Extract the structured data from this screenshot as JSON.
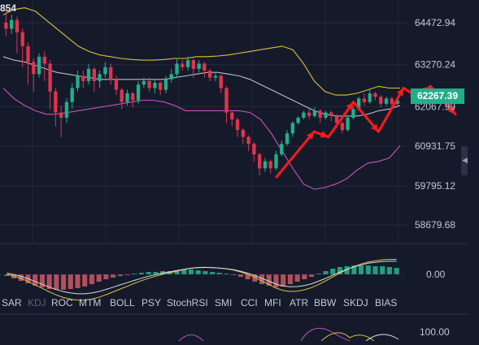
{
  "header": {
    "corner_value": "854"
  },
  "colors": {
    "bg": "#151a2b",
    "up": "#1fb08a",
    "down": "#e0344e",
    "upper_band": "#d8c43a",
    "lower_band": "#c455b8",
    "middle_band": "#b9bccb",
    "annotation": "#ff1a1a",
    "grid": "#242a3e"
  },
  "chart_data": [
    {
      "type": "candlestick",
      "y_ticks": [
        "64472.94",
        "63270.24",
        "62067.99",
        "60931.75",
        "59795.12",
        "58679.68"
      ],
      "last_price": "62267.39",
      "candles": [
        [
          64480,
          64300,
          64860,
          64100
        ],
        [
          64300,
          64550,
          64700,
          64150
        ],
        [
          64550,
          64200,
          64650,
          63600
        ],
        [
          64200,
          63800,
          64300,
          63200
        ],
        [
          63800,
          63350,
          63900,
          62700
        ],
        [
          63350,
          63000,
          63450,
          62500
        ],
        [
          63000,
          63500,
          63600,
          62900
        ],
        [
          63500,
          63300,
          63650,
          62800
        ],
        [
          63300,
          62500,
          63400,
          62000
        ],
        [
          62500,
          61900,
          62600,
          61500
        ],
        [
          61900,
          61750,
          62100,
          61200
        ],
        [
          61750,
          62200,
          62300,
          61600
        ],
        [
          62200,
          62600,
          62750,
          62000
        ],
        [
          62600,
          62950,
          63100,
          62500
        ],
        [
          62950,
          62800,
          63100,
          62600
        ],
        [
          62800,
          63150,
          63300,
          62700
        ],
        [
          63150,
          62800,
          63200,
          62500
        ],
        [
          62800,
          63000,
          63100,
          62600
        ],
        [
          63000,
          63200,
          63350,
          62900
        ],
        [
          63200,
          62850,
          63300,
          62700
        ],
        [
          62850,
          62550,
          62950,
          62400
        ],
        [
          62550,
          62200,
          62600,
          62000
        ],
        [
          62200,
          62450,
          62550,
          62100
        ],
        [
          62450,
          62250,
          62500,
          62050
        ],
        [
          62250,
          62700,
          62800,
          62150
        ],
        [
          62700,
          62800,
          62900,
          62600
        ],
        [
          62800,
          62600,
          62900,
          62500
        ],
        [
          62600,
          62750,
          62850,
          62450
        ],
        [
          62750,
          62550,
          62800,
          62400
        ],
        [
          62550,
          62850,
          62950,
          62450
        ],
        [
          62850,
          63000,
          63150,
          62750
        ],
        [
          63000,
          63300,
          63450,
          62900
        ],
        [
          63300,
          63200,
          63400,
          63100
        ],
        [
          63200,
          63400,
          63500,
          63100
        ],
        [
          63400,
          63150,
          63450,
          62900
        ],
        [
          63150,
          63300,
          63400,
          63050
        ],
        [
          63300,
          63100,
          63350,
          62900
        ],
        [
          63100,
          62900,
          63150,
          62800
        ],
        [
          62900,
          62950,
          63050,
          62800
        ],
        [
          62950,
          62600,
          63000,
          62450
        ],
        [
          62600,
          61900,
          62650,
          61600
        ],
        [
          61900,
          61700,
          61950,
          61500
        ],
        [
          61700,
          61400,
          61750,
          61200
        ],
        [
          61400,
          61200,
          61450,
          61000
        ],
        [
          61200,
          61000,
          61250,
          60800
        ],
        [
          61000,
          60700,
          61050,
          60500
        ],
        [
          60700,
          60300,
          60750,
          60100
        ],
        [
          60300,
          60500,
          60600,
          60200
        ],
        [
          60500,
          60300,
          60550,
          60150
        ],
        [
          60300,
          60700,
          60800,
          60250
        ],
        [
          60700,
          61000,
          61100,
          60650
        ],
        [
          61000,
          61300,
          61400,
          60950
        ],
        [
          61300,
          61600,
          61650,
          61200
        ],
        [
          61600,
          61750,
          61800,
          61550
        ],
        [
          61750,
          61900,
          61950,
          61700
        ],
        [
          61900,
          61800,
          62000,
          61700
        ],
        [
          61800,
          61950,
          62050,
          61750
        ],
        [
          61950,
          61750,
          62000,
          61600
        ],
        [
          61750,
          61900,
          61950,
          61700
        ],
        [
          61900,
          61800,
          61950,
          61650
        ],
        [
          61800,
          61600,
          61850,
          61450
        ],
        [
          61600,
          61400,
          61650,
          61300
        ],
        [
          61400,
          61750,
          61800,
          61350
        ],
        [
          61750,
          62000,
          62100,
          61700
        ],
        [
          62000,
          62300,
          62350,
          61950
        ],
        [
          62300,
          62200,
          62450,
          62100
        ],
        [
          62200,
          62450,
          62550,
          62150
        ],
        [
          62450,
          62350,
          62500,
          62250
        ],
        [
          62350,
          62150,
          62400,
          62050
        ],
        [
          62150,
          62300,
          62350,
          62100
        ],
        [
          62300,
          62150,
          62350,
          62050
        ],
        [
          62150,
          62250,
          62300,
          62100
        ]
      ],
      "bollinger_upper": [
        64700,
        64850,
        64900,
        64800,
        64550,
        64300,
        64050,
        63800,
        63650,
        63550,
        63500,
        63450,
        63420,
        63400,
        63400,
        63420,
        63450,
        63450,
        63500,
        63500,
        63520,
        63550,
        63600,
        63650,
        63700,
        63750,
        63800,
        63700,
        63300,
        62800,
        62500,
        62400,
        62400,
        62450,
        62550,
        62650,
        62600,
        62600
      ],
      "bollinger_middle": [
        63500,
        63400,
        63350,
        63250,
        63150,
        63050,
        63000,
        62950,
        62900,
        62850,
        62850,
        62850,
        62850,
        62850,
        62850,
        62850,
        62900,
        62950,
        63000,
        63050,
        63050,
        63000,
        62950,
        62850,
        62700,
        62550,
        62400,
        62250,
        62100,
        61950,
        61850,
        61800,
        61800,
        61800,
        61850,
        61950,
        62000,
        62100
      ],
      "bollinger_lower": [
        62600,
        62300,
        62100,
        61950,
        61850,
        61850,
        61900,
        61950,
        62000,
        62050,
        62100,
        62150,
        62200,
        62250,
        62250,
        62200,
        62100,
        61950,
        61950,
        61950,
        61950,
        61950,
        61950,
        61900,
        61700,
        61300,
        60800,
        60300,
        59850,
        59700,
        59750,
        59850,
        60000,
        60250,
        60450,
        60500,
        60600,
        60950
      ],
      "annotation_path": [
        [
          60050,
          0
        ],
        [
          61350,
          0.21
        ],
        [
          61200,
          0.29
        ],
        [
          62200,
          0.43
        ],
        [
          61350,
          0.57
        ],
        [
          62600,
          0.71
        ],
        [
          62350,
          0.79
        ],
        [
          62650,
          0.86
        ],
        [
          61850,
          1.0
        ]
      ]
    },
    {
      "type": "histogram",
      "y_ticks": [
        "0.00"
      ],
      "values": [
        -0.1,
        -0.25,
        -0.4,
        -0.55,
        -0.7,
        -0.8,
        -0.9,
        -0.95,
        -0.95,
        -0.9,
        -0.85,
        -0.75,
        -0.6,
        -0.45,
        -0.3,
        -0.2,
        -0.1,
        -0.05,
        0.05,
        0.1,
        0.15,
        0.15,
        0.2,
        0.2,
        0.25,
        0.3,
        0.3,
        0.25,
        0.2,
        0.15,
        0.1,
        0.05,
        -0.05,
        -0.15,
        -0.3,
        -0.45,
        -0.6,
        -0.7,
        -0.8,
        -0.75,
        -0.6,
        -0.45,
        -0.3,
        -0.15,
        0.05,
        0.2,
        0.35,
        0.45,
        0.5,
        0.55,
        0.55,
        0.55,
        0.5,
        0.5,
        0.45,
        0.4
      ],
      "ylim": [
        -1.2,
        1.2
      ]
    },
    {
      "type": "line",
      "y_ticks": [
        "100.00"
      ]
    }
  ],
  "indicator_tabs": [
    "SAR",
    "KDJ",
    "ROC",
    "MTM",
    "BOLL",
    "PSY",
    "StochRSI",
    "SMI",
    "CCI",
    "MFI",
    "ATR",
    "BBW",
    "SKDJ",
    "BIAS"
  ]
}
